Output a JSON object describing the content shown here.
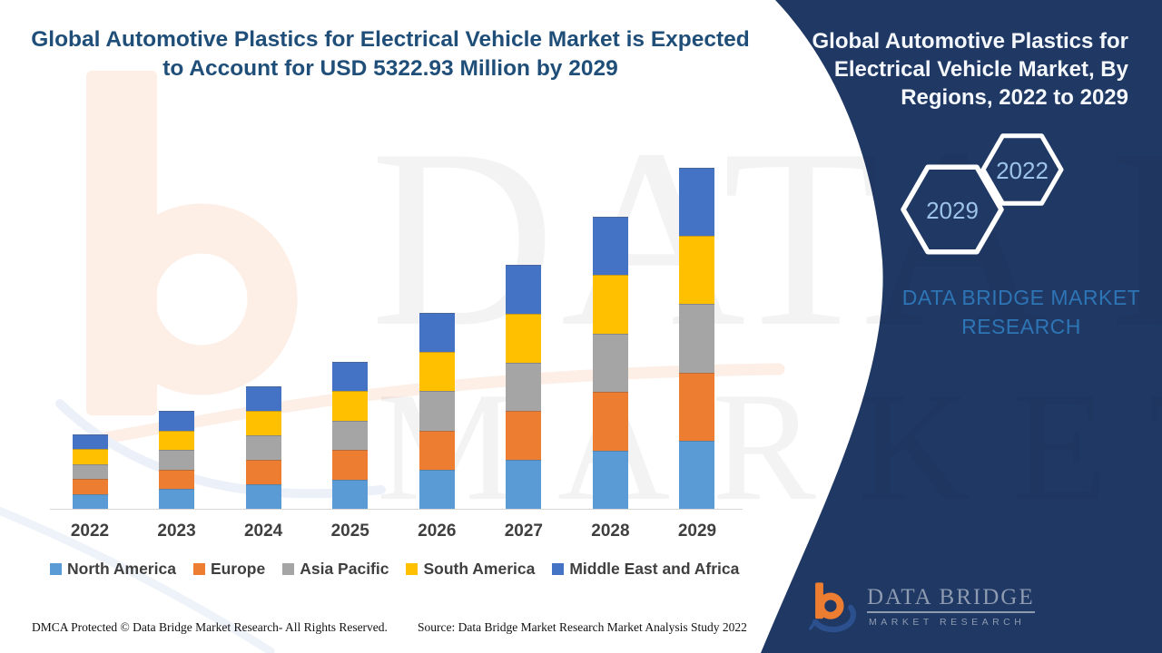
{
  "header": {
    "title": "Global Automotive Plastics for Electrical Vehicle Market is Expected to Account for USD 5322.93 Million by 2029"
  },
  "side_panel": {
    "title": "Global Automotive Plastics for Electrical Vehicle Market, By Regions, 2022 to 2029",
    "hexagon_back_label": "2022",
    "hexagon_front_label": "2029",
    "brand_text": "DATA BRIDGE MARKET RESEARCH",
    "background_color": "#1F3864",
    "brand_text_color": "#2E75B6",
    "hexagon_label_color": "#9DC3E6"
  },
  "watermark": {
    "row1": "DATA BRIDGE",
    "row2": "MARKET RESEARCH"
  },
  "logo": {
    "wordmark": "DATA BRIDGE",
    "subtext": "MARKET RESEARCH"
  },
  "footer": {
    "dmca": "DMCA Protected © Data Bridge Market Research- All Rights Reserved.",
    "source": "Source: Data Bridge Market Research Market Analysis Study 2022"
  },
  "chart_data": {
    "type": "bar",
    "stacked": true,
    "title": "Global Automotive Plastics for Electrical Vehicle Market is Expected to Account for USD 5322.93 Million by 2029",
    "unit": "USD Million",
    "categories": [
      "2022",
      "2023",
      "2024",
      "2025",
      "2026",
      "2027",
      "2028",
      "2029"
    ],
    "series": [
      {
        "name": "North America",
        "color": "#5B9BD5",
        "values": [
          232.2,
          305.8,
          382.2,
          458.7,
          611.6,
          761.6,
          911.7,
          1064.59
        ]
      },
      {
        "name": "Europe",
        "color": "#ED7D31",
        "values": [
          232.2,
          305.8,
          382.2,
          458.7,
          611.6,
          761.6,
          911.7,
          1064.59
        ]
      },
      {
        "name": "Asia Pacific",
        "color": "#A5A5A5",
        "values": [
          232.2,
          305.8,
          382.2,
          458.7,
          611.6,
          761.6,
          911.7,
          1064.59
        ]
      },
      {
        "name": "South America",
        "color": "#FFC000",
        "values": [
          232.2,
          305.8,
          382.2,
          458.7,
          611.6,
          761.6,
          911.7,
          1064.59
        ]
      },
      {
        "name": "Middle East and Africa",
        "color": "#4472C4",
        "values": [
          232.2,
          305.8,
          382.2,
          458.7,
          611.6,
          761.6,
          911.7,
          1064.59
        ]
      }
    ],
    "totals_estimated": [
      1161.0,
      1529.0,
      1911.0,
      2293.5,
      3058.0,
      3808.0,
      4558.5,
      5322.93
    ],
    "ylim": [
      0,
      5600
    ],
    "y_axis_shown": false,
    "gridlines": false,
    "legend_position": "bottom"
  }
}
